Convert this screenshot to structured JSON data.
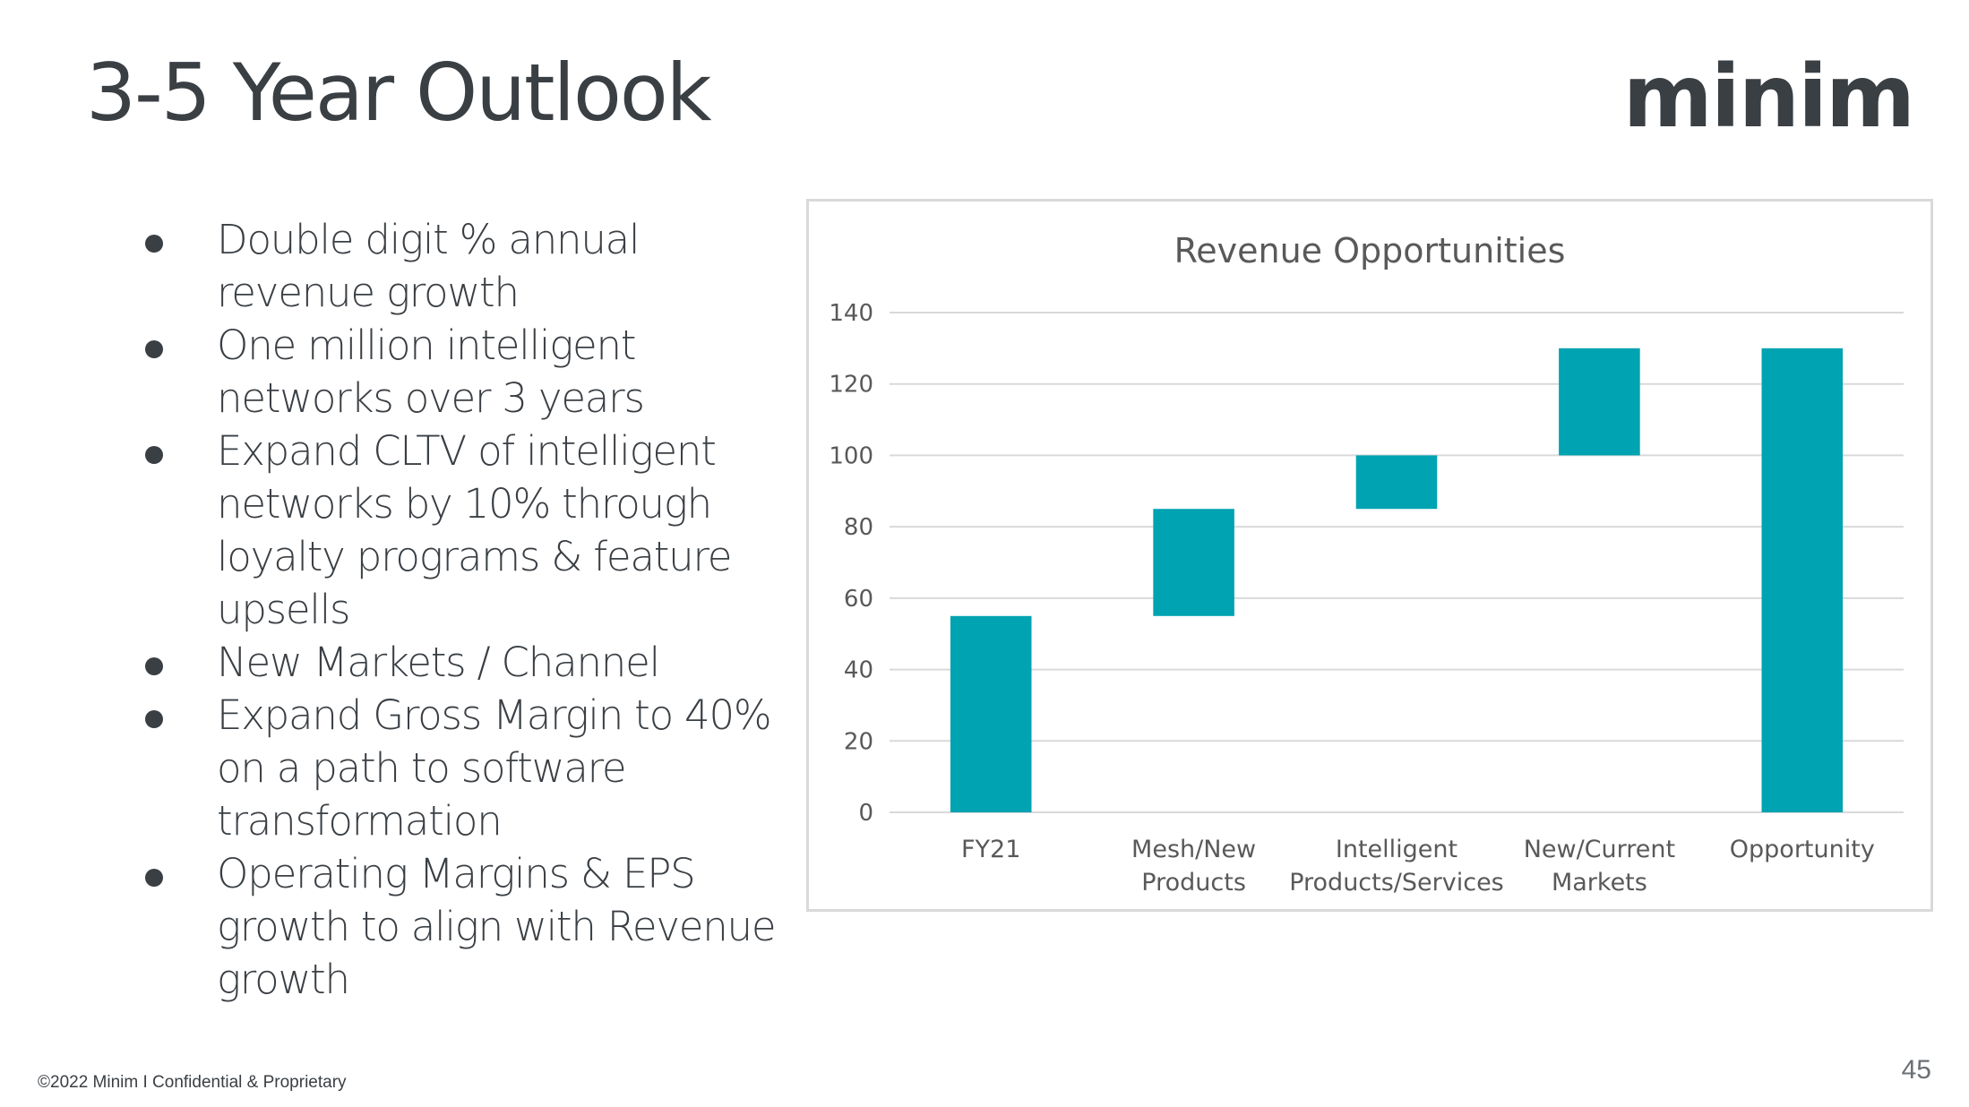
{
  "slide": {
    "title": "3-5 Year Outlook",
    "brand": "minim",
    "footer": "©2022 Minim I Confidential & Proprietary",
    "page_number": "45"
  },
  "bullets": [
    "Double digit % annual revenue growth",
    "One million intelligent networks over 3 years",
    "Expand CLTV of intelligent networks by 10% through loyalty programs & feature upsells",
    "New Markets / Channel",
    "Expand Gross Margin to 40% on a path to software transformation",
    "Operating Margins & EPS growth to align with Revenue growth"
  ],
  "colors": {
    "bar": "#00a3b1",
    "text": "#3a3f44",
    "grid": "#d9d9d9"
  },
  "chart_data": {
    "type": "bar",
    "subtype": "waterfall",
    "title": "Revenue Opportunities",
    "categories": [
      [
        "FY21"
      ],
      [
        "Mesh/New",
        "Products"
      ],
      [
        "Intelligent",
        "Products/Services"
      ],
      [
        "New/Current",
        "Markets"
      ],
      [
        "Opportunity"
      ]
    ],
    "bars": [
      {
        "start": 0,
        "end": 55
      },
      {
        "start": 55,
        "end": 85
      },
      {
        "start": 85,
        "end": 100
      },
      {
        "start": 100,
        "end": 130
      },
      {
        "start": 0,
        "end": 130
      }
    ],
    "yticks": [
      0,
      20,
      40,
      60,
      80,
      100,
      120,
      140
    ],
    "ylim": [
      0,
      140
    ],
    "grid": true,
    "legend": "none"
  }
}
